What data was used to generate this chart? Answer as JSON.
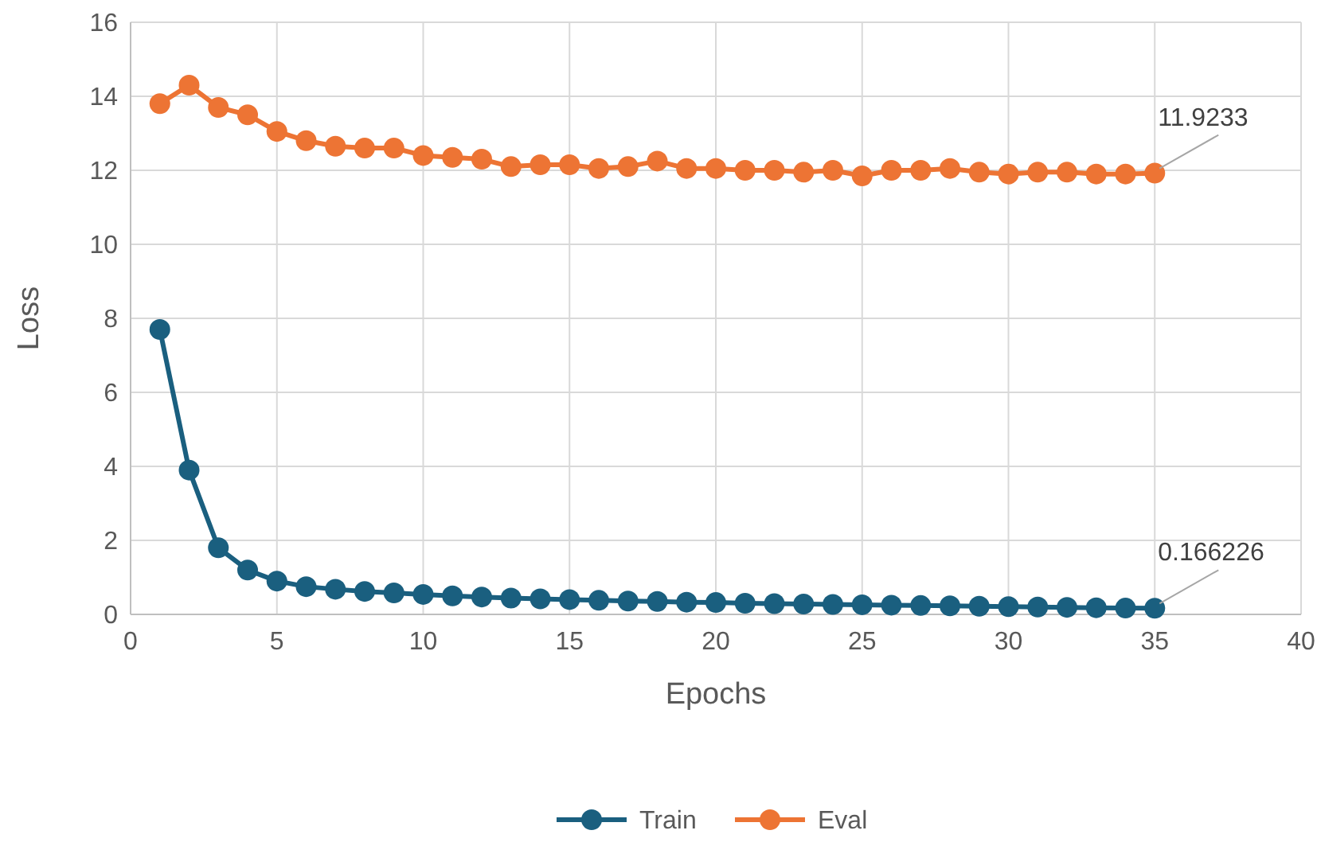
{
  "chart_data": {
    "type": "line",
    "xlabel": "Epochs",
    "ylabel": "Loss",
    "x": [
      1,
      2,
      3,
      4,
      5,
      6,
      7,
      8,
      9,
      10,
      11,
      12,
      13,
      14,
      15,
      16,
      17,
      18,
      19,
      20,
      21,
      22,
      23,
      24,
      25,
      26,
      27,
      28,
      29,
      30,
      31,
      32,
      33,
      34,
      35
    ],
    "xlim": [
      0,
      40
    ],
    "xticks": [
      0,
      5,
      10,
      15,
      20,
      25,
      30,
      35,
      40
    ],
    "ylim": [
      0,
      16
    ],
    "yticks": [
      0,
      2,
      4,
      6,
      8,
      10,
      12,
      14,
      16
    ],
    "grid": true,
    "legend": "bottom",
    "marker": "circle",
    "line_style": "solid",
    "series": [
      {
        "name": "Train",
        "color": "#1a5f7f",
        "values": [
          7.7,
          3.9,
          1.8,
          1.2,
          0.9,
          0.75,
          0.68,
          0.62,
          0.58,
          0.54,
          0.5,
          0.47,
          0.44,
          0.42,
          0.4,
          0.38,
          0.36,
          0.35,
          0.33,
          0.32,
          0.3,
          0.29,
          0.28,
          0.27,
          0.26,
          0.25,
          0.24,
          0.23,
          0.22,
          0.21,
          0.2,
          0.19,
          0.18,
          0.17,
          0.166226
        ],
        "value_labels": [
          null,
          null,
          null,
          null,
          null,
          null,
          null,
          null,
          null,
          null,
          null,
          null,
          null,
          null,
          null,
          null,
          null,
          null,
          null,
          null,
          null,
          null,
          null,
          null,
          null,
          null,
          null,
          null,
          null,
          null,
          null,
          null,
          null,
          null,
          "0.166226"
        ]
      },
      {
        "name": "Eval",
        "color": "#ed7434",
        "values": [
          13.8,
          14.3,
          13.7,
          13.5,
          13.05,
          12.8,
          12.65,
          12.6,
          12.6,
          12.4,
          12.35,
          12.3,
          12.1,
          12.15,
          12.15,
          12.05,
          12.1,
          12.25,
          12.05,
          12.05,
          12.0,
          12.0,
          11.95,
          12.0,
          11.85,
          12.0,
          12.0,
          12.05,
          11.95,
          11.9,
          11.95,
          11.95,
          11.9,
          11.9,
          11.9233
        ],
        "value_labels": [
          null,
          null,
          null,
          null,
          null,
          null,
          null,
          null,
          null,
          null,
          null,
          null,
          null,
          null,
          null,
          null,
          null,
          null,
          null,
          null,
          null,
          null,
          null,
          null,
          null,
          null,
          null,
          null,
          null,
          null,
          null,
          null,
          null,
          null,
          "11.9233"
        ]
      }
    ]
  }
}
